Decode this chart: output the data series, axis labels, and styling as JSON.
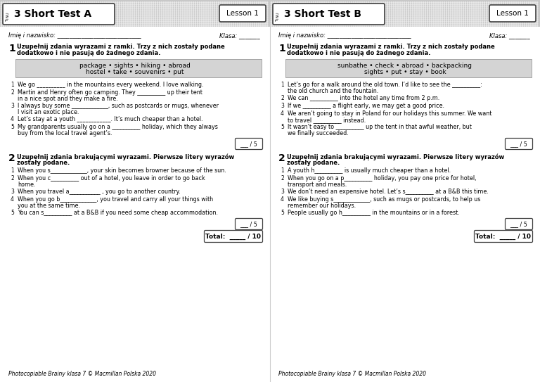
{
  "bg_color": "#ffffff",
  "left": {
    "title": "3 Short Test A",
    "unit_label": "UNIT",
    "lesson_label": "Lesson 1",
    "section1_bold": "Uzupełnij zdania wyrazami z ramki. Trzy z nich zostały podane\ndodatkowo i nie pasują do żadnego zdania.",
    "wordbox": "package • sights • hiking • abroad\nhostel • take • souvenirs • put",
    "items1": [
      "We go __________ in the mountains every weekend. I love walking.",
      "Martin and Henry often go camping. They __________ up their tent\n    in a nice spot and they make a fire.",
      "I always buy some _____________, such as postcards or mugs, whenever\n    I visit an exotic place.",
      "Let’s stay at a youth ____________. It’s much cheaper than a hotel.",
      "My grandparents usually go on a __________ holiday, which they always\n    buy from the local travel agent’s."
    ],
    "score1": "___ / 5",
    "section2_bold": "Uzupełnij zdania brakującymi wyrazami. Pierwsze litery wyrazów\nzostały podane.",
    "items2": [
      "When you s_____________, your skin becomes browner because of the sun.",
      "When you c__________ out of a hotel, you leave in order to go back\n    home.",
      "When you travel a___________ , you go to another country.",
      "When you go b_____________, you travel and carry all your things with\n    you at the same time.",
      "You can s__________ at a B&B if you need some cheap accommodation."
    ],
    "score2": "___ / 5",
    "total": "Total:  _____ / 10",
    "footer": "Photocopiable Brainy klasa 7 © Macmillan Polska 2020"
  },
  "right": {
    "title": "3 Short Test B",
    "unit_label": "UNIT",
    "lesson_label": "Lesson 1",
    "section1_bold": "Uzupełnij zdania wyrazami z ramki. Trzy z nich zostały podane\ndodatkowo i nie pasują do żadnego zdania.",
    "wordbox": "sunbathe • check • abroad • backpacking\nsights • put • stay • book",
    "items1": [
      "Let’s go for a walk around the old town. I’d like to see the __________:\n    the old church and the fountain.",
      "We can __________ into the hotel any time from 2 p.m.",
      "If we __________ a flight early, we may get a good price.",
      "We aren’t going to stay in Poland for our holidays this summer. We want\n    to travel __________ instead.",
      "It wasn’t easy to __________ up the tent in that awful weather, but\n    we finally succeeded."
    ],
    "score1": "___ / 5",
    "section2_bold": "Uzupełnij zdania brakującymi wyrazami. Pierwsze litery wyrazów\nzostały podane.",
    "items2": [
      "A youth h__________ is usually much cheaper than a hotel.",
      "When you go on a p__________ holiday, you pay one price for hotel,\n    transport and meals.",
      "We don’t need an expensive hotel. Let’s s__________ at a B&B this time.",
      "We like buying s_____________, such as mugs or postcards, to help us\n    remember our holidays.",
      "People usually go h__________ in the mountains or in a forest."
    ],
    "score2": "___ / 5",
    "total": "Total:  _____ / 10",
    "footer": "Photocopiable Brainy klasa 7 © Macmillan Polska 2020"
  }
}
